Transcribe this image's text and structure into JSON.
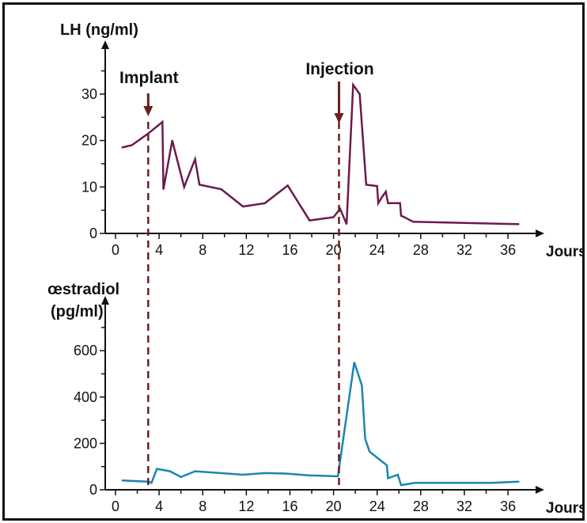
{
  "chart_data": [
    {
      "type": "line",
      "title": "",
      "ylabel": "LH (ng/ml)",
      "xlabel": "Jours",
      "xlim": [
        0,
        37
      ],
      "ylim": [
        0,
        35
      ],
      "x_ticks": [
        "0",
        "4",
        "8",
        "12",
        "16",
        "20",
        "24",
        "28",
        "32",
        "36"
      ],
      "y_ticks": [
        "0",
        "10",
        "20",
        "30"
      ],
      "series": [
        {
          "name": "LH",
          "color": "#6b1a4f",
          "x": [
            0.6,
            1.5,
            3.0,
            4.3,
            4.4,
            5.2,
            6.3,
            7.3,
            7.7,
            9.7,
            11.7,
            13.7,
            15.8,
            17.8,
            20.0,
            20.6,
            21.2,
            21.8,
            22.4,
            23.0,
            23.3,
            24.0,
            24.1,
            24.5,
            24.8,
            25.0,
            26.1,
            26.2,
            26.5,
            27.3,
            37.0
          ],
          "values": [
            18.5,
            19.0,
            21.5,
            24.0,
            9.5,
            20.0,
            10.0,
            16.0,
            10.5,
            9.5,
            5.8,
            6.5,
            10.3,
            2.8,
            3.5,
            5.3,
            2.0,
            32.0,
            30.0,
            10.5,
            10.4,
            10.2,
            6.5,
            8.0,
            9.0,
            6.5,
            6.5,
            3.8,
            3.5,
            2.5,
            2.0
          ]
        }
      ],
      "annotations": [
        {
          "text": "Implant",
          "x": 3.0
        },
        {
          "text": "Injection",
          "x": 20.5
        }
      ]
    },
    {
      "type": "line",
      "title": "",
      "ylabel": "œstradiol (pg/ml)",
      "xlabel": "Jours",
      "xlim": [
        0,
        37
      ],
      "ylim": [
        0,
        700
      ],
      "x_ticks": [
        "0",
        "4",
        "8",
        "12",
        "16",
        "20",
        "24",
        "28",
        "32",
        "36"
      ],
      "y_ticks": [
        "0",
        "200",
        "400",
        "600"
      ],
      "series": [
        {
          "name": "œstradiol",
          "color": "#1a86b0",
          "x": [
            0.6,
            3.0,
            3.3,
            3.8,
            5.0,
            6.0,
            7.3,
            9.6,
            11.7,
            13.7,
            15.6,
            17.7,
            20.4,
            21.9,
            22.6,
            22.9,
            23.3,
            24.9,
            25.0,
            25.9,
            26.2,
            27.5,
            34.5,
            37.0
          ],
          "values": [
            40,
            35,
            30,
            90,
            80,
            55,
            80,
            72,
            65,
            72,
            70,
            62,
            58,
            550,
            450,
            220,
            165,
            105,
            50,
            65,
            20,
            30,
            30,
            35
          ]
        }
      ]
    }
  ],
  "markers": {
    "dashed_color": "#6b1f1f",
    "implant_day": 3.0,
    "injection_day": 20.5
  }
}
